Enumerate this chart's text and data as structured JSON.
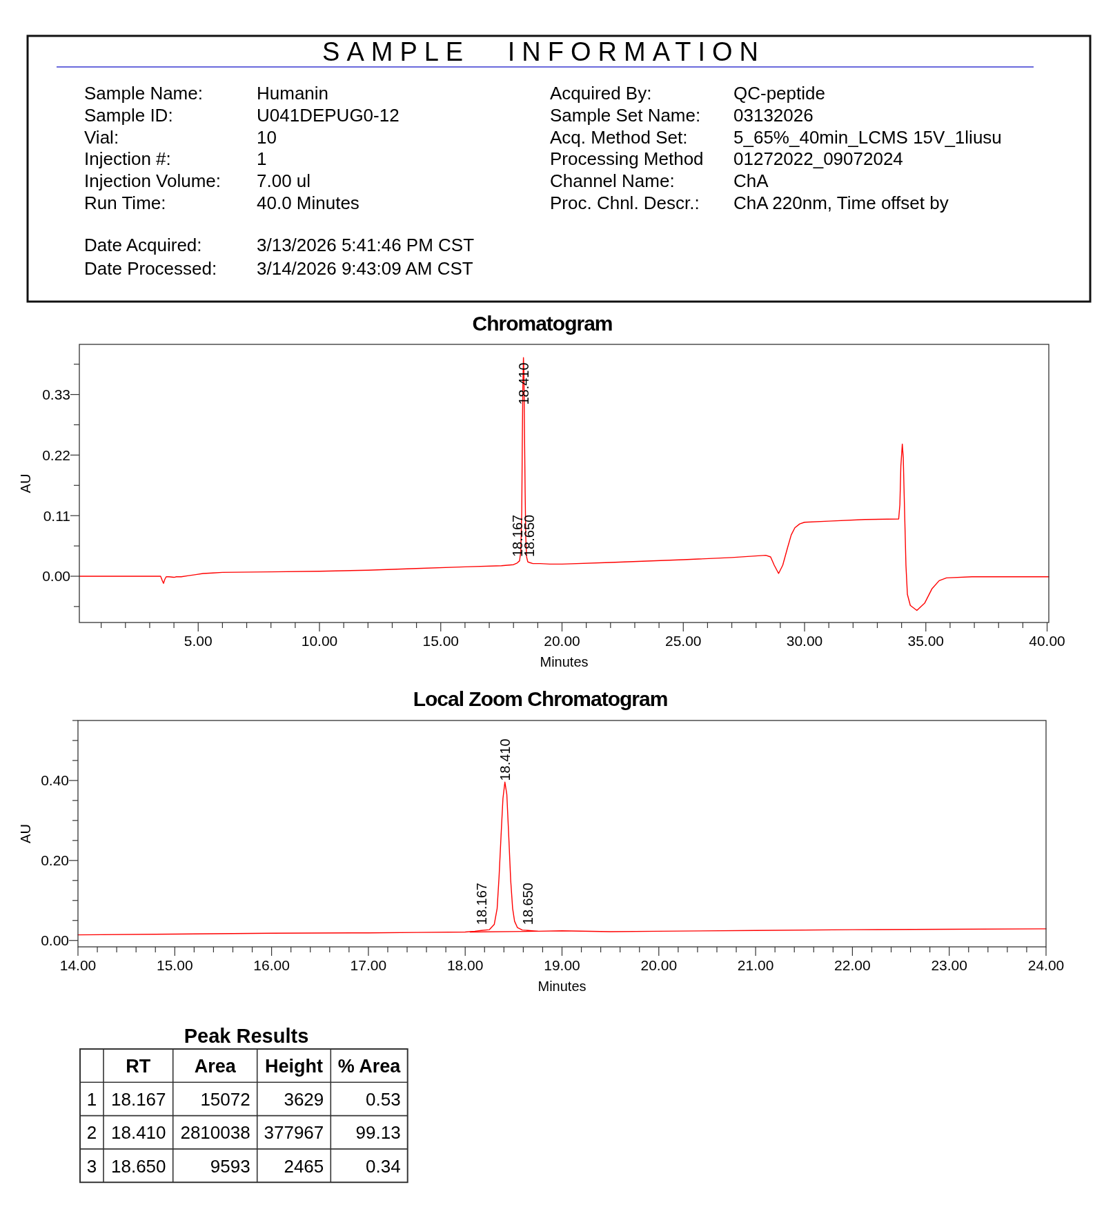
{
  "chart_data": [
    {
      "type": "other",
      "title": "SAMPLE INFORMATION",
      "annotations": [
        "Sample Name:",
        "Humanin",
        "Sample ID:",
        "U041DEPUG0-12",
        "Vial:",
        "10",
        "Injection #:",
        "1",
        "Injection Volume:",
        "7.00 ul",
        "Run Time:",
        "40.0 Minutes",
        "Acquired By:",
        "QC-peptide",
        "Sample Set Name:",
        "03132026",
        "Acq. Method Set:",
        "5_65%_40min_LCMS 15V_1liusu",
        "Processing Method",
        "01272022_09072024",
        "Channel Name:",
        "ChA",
        "Proc. Chnl. Descr.:",
        "ChA 220nm, Time offset by",
        "Date Acquired:",
        "3/13/2026 5:41:46 PM CST",
        "Date Processed:",
        "3/14/2026 9:43:09 AM CST"
      ]
    },
    {
      "type": "line",
      "title": "Chromatogram",
      "xlabel": "Minutes",
      "ylabel": "AU",
      "xlim": [
        0.1,
        40.07
      ],
      "ylim": [
        -0.084,
        0.421
      ],
      "xticks": [
        {
          "value": 1,
          "label": null
        },
        {
          "value": 2,
          "label": null
        },
        {
          "value": 3,
          "label": null
        },
        {
          "value": 4,
          "label": null
        },
        {
          "value": 5,
          "label": "5.00"
        },
        {
          "value": 6,
          "label": null
        },
        {
          "value": 7,
          "label": null
        },
        {
          "value": 8,
          "label": null
        },
        {
          "value": 9,
          "label": null
        },
        {
          "value": 10,
          "label": "10.00"
        },
        {
          "value": 11,
          "label": null
        },
        {
          "value": 12,
          "label": null
        },
        {
          "value": 13,
          "label": null
        },
        {
          "value": 14,
          "label": null
        },
        {
          "value": 15,
          "label": "15.00"
        },
        {
          "value": 16,
          "label": null
        },
        {
          "value": 17,
          "label": null
        },
        {
          "value": 18,
          "label": null
        },
        {
          "value": 19,
          "label": null
        },
        {
          "value": 20,
          "label": "20.00"
        },
        {
          "value": 21,
          "label": null
        },
        {
          "value": 22,
          "label": null
        },
        {
          "value": 23,
          "label": null
        },
        {
          "value": 24,
          "label": null
        },
        {
          "value": 25,
          "label": "25.00"
        },
        {
          "value": 26,
          "label": null
        },
        {
          "value": 27,
          "label": null
        },
        {
          "value": 28,
          "label": null
        },
        {
          "value": 29,
          "label": null
        },
        {
          "value": 30,
          "label": "30.00"
        },
        {
          "value": 31,
          "label": null
        },
        {
          "value": 32,
          "label": null
        },
        {
          "value": 33,
          "label": null
        },
        {
          "value": 34,
          "label": null
        },
        {
          "value": 35,
          "label": "35.00"
        },
        {
          "value": 36,
          "label": null
        },
        {
          "value": 37,
          "label": null
        },
        {
          "value": 38,
          "label": null
        },
        {
          "value": 39,
          "label": null
        },
        {
          "value": 40,
          "label": "40.00"
        }
      ],
      "yticks": [
        {
          "value": -0.055,
          "label": null
        },
        {
          "value": 0,
          "label": "0.00"
        },
        {
          "value": 0.055,
          "label": null
        },
        {
          "value": 0.11,
          "label": "0.11"
        },
        {
          "value": 0.165,
          "label": null
        },
        {
          "value": 0.22,
          "label": "0.22"
        },
        {
          "value": 0.275,
          "label": null
        },
        {
          "value": 0.33,
          "label": "0.33"
        },
        {
          "value": 0.385,
          "label": null
        }
      ],
      "series": [
        {
          "color": "#ff0000",
          "x": [
            0.1,
            1,
            2,
            3,
            3.45,
            3.52,
            3.57,
            3.62,
            3.68,
            3.8,
            4,
            4.1,
            4.3,
            4.6,
            4.9,
            5.2,
            5.6,
            6,
            8,
            10,
            12,
            14,
            16,
            17.5,
            18,
            18.15,
            18.25,
            18.3,
            18.34,
            18.36,
            18.385,
            18.41,
            18.43,
            18.45,
            18.48,
            18.505,
            18.54,
            18.59,
            18.65,
            18.8,
            19.1,
            19.5,
            20,
            22,
            25,
            27,
            28.4,
            28.6,
            28.75,
            28.93,
            29.1,
            29.3,
            29.45,
            29.6,
            29.8,
            30,
            31,
            32.5,
            33.88,
            33.93,
            33.97,
            34.03,
            34.07,
            34.1,
            34.14,
            34.18,
            34.24,
            34.36,
            34.63,
            34.95,
            35.25,
            35.55,
            35.85,
            36.9,
            38,
            40.07
          ],
          "values": [
            0,
            0,
            0,
            0,
            0,
            -0.008,
            -0.013,
            -0.006,
            -0.001,
            -0.001,
            -0.002,
            -0.001,
            -0.001,
            0.001,
            0.003,
            0.005,
            0.006,
            0.007,
            0.008,
            0.009,
            0.011,
            0.014,
            0.017,
            0.019,
            0.021,
            0.024,
            0.028,
            0.045,
            0.116,
            0.23,
            0.345,
            0.397,
            0.371,
            0.274,
            0.151,
            0.072,
            0.035,
            0.026,
            0.025,
            0.023,
            0.023,
            0.022,
            0.022,
            0.025,
            0.03,
            0.034,
            0.038,
            0.035,
            0.02,
            0.005,
            0.02,
            0.052,
            0.075,
            0.088,
            0.095,
            0.098,
            0.1,
            0.103,
            0.104,
            0.13,
            0.2,
            0.24,
            0.215,
            0.16,
            0.09,
            0.02,
            -0.033,
            -0.053,
            -0.062,
            -0.049,
            -0.023,
            -0.008,
            -0.003,
            -0.001,
            -0.001,
            -0.001
          ]
        }
      ],
      "annotations": [
        {
          "text": "18.167",
          "x": 18.167,
          "y": 0.025
        },
        {
          "text": "18.410",
          "x": 18.41,
          "y": 0.397
        },
        {
          "text": "18.650",
          "x": 18.65,
          "y": 0.025
        }
      ]
    },
    {
      "type": "line",
      "title": "Local Zoom Chromatogram",
      "xlabel": "Minutes",
      "ylabel": "AU",
      "xlim": [
        14,
        24
      ],
      "ylim": [
        -0.016,
        0.55
      ],
      "xticks": [
        {
          "value": 14,
          "label": "14.00"
        },
        {
          "value": 14.2,
          "label": null
        },
        {
          "value": 14.4,
          "label": null
        },
        {
          "value": 14.6,
          "label": null
        },
        {
          "value": 14.8,
          "label": null
        },
        {
          "value": 15,
          "label": "15.00"
        },
        {
          "value": 15.2,
          "label": null
        },
        {
          "value": 15.4,
          "label": null
        },
        {
          "value": 15.6,
          "label": null
        },
        {
          "value": 15.8,
          "label": null
        },
        {
          "value": 16,
          "label": "16.00"
        },
        {
          "value": 16.2,
          "label": null
        },
        {
          "value": 16.4,
          "label": null
        },
        {
          "value": 16.6,
          "label": null
        },
        {
          "value": 16.8,
          "label": null
        },
        {
          "value": 17,
          "label": "17.00"
        },
        {
          "value": 17.2,
          "label": null
        },
        {
          "value": 17.4,
          "label": null
        },
        {
          "value": 17.6,
          "label": null
        },
        {
          "value": 17.8,
          "label": null
        },
        {
          "value": 18,
          "label": "18.00"
        },
        {
          "value": 18.2,
          "label": null
        },
        {
          "value": 18.4,
          "label": null
        },
        {
          "value": 18.6,
          "label": null
        },
        {
          "value": 18.8,
          "label": null
        },
        {
          "value": 19,
          "label": "19.00"
        },
        {
          "value": 19.2,
          "label": null
        },
        {
          "value": 19.4,
          "label": null
        },
        {
          "value": 19.6,
          "label": null
        },
        {
          "value": 19.8,
          "label": null
        },
        {
          "value": 20,
          "label": "20.00"
        },
        {
          "value": 20.2,
          "label": null
        },
        {
          "value": 20.4,
          "label": null
        },
        {
          "value": 20.6,
          "label": null
        },
        {
          "value": 20.8,
          "label": null
        },
        {
          "value": 21,
          "label": "21.00"
        },
        {
          "value": 21.2,
          "label": null
        },
        {
          "value": 21.4,
          "label": null
        },
        {
          "value": 21.6,
          "label": null
        },
        {
          "value": 21.8,
          "label": null
        },
        {
          "value": 22,
          "label": "22.00"
        },
        {
          "value": 22.2,
          "label": null
        },
        {
          "value": 22.4,
          "label": null
        },
        {
          "value": 22.6,
          "label": null
        },
        {
          "value": 22.8,
          "label": null
        },
        {
          "value": 23,
          "label": "23.00"
        },
        {
          "value": 23.2,
          "label": null
        },
        {
          "value": 23.4,
          "label": null
        },
        {
          "value": 23.6,
          "label": null
        },
        {
          "value": 23.8,
          "label": null
        },
        {
          "value": 24,
          "label": "24.00"
        }
      ],
      "yticks": [
        {
          "value": 0,
          "label": "0.00"
        },
        {
          "value": 0.05,
          "label": null
        },
        {
          "value": 0.1,
          "label": null
        },
        {
          "value": 0.15,
          "label": null
        },
        {
          "value": 0.2,
          "label": "0.20"
        },
        {
          "value": 0.25,
          "label": null
        },
        {
          "value": 0.3,
          "label": null
        },
        {
          "value": 0.35,
          "label": null
        },
        {
          "value": 0.4,
          "label": "0.40"
        },
        {
          "value": 0.45,
          "label": null
        },
        {
          "value": 0.5,
          "label": null
        },
        {
          "value": 0.55,
          "label": null
        }
      ],
      "series": [
        {
          "color": "#ff0000",
          "x": [
            14,
            15,
            16,
            17,
            17.5,
            18,
            18.1,
            18.167,
            18.25,
            18.3,
            18.33,
            18.35,
            18.37,
            18.39,
            18.41,
            18.43,
            18.45,
            18.47,
            18.49,
            18.51,
            18.54,
            18.59,
            18.65,
            18.75,
            19,
            19.5,
            20,
            21,
            22,
            23,
            24
          ],
          "values": [
            0.014,
            0.016,
            0.018,
            0.019,
            0.02,
            0.021,
            0.023,
            0.025,
            0.027,
            0.04,
            0.08,
            0.16,
            0.26,
            0.355,
            0.396,
            0.365,
            0.26,
            0.15,
            0.08,
            0.048,
            0.032,
            0.026,
            0.025,
            0.023,
            0.024,
            0.022,
            0.023,
            0.025,
            0.027,
            0.028,
            0.029
          ]
        },
        {
          "color": "#ff0000",
          "x": [
            18.05,
            18.75
          ],
          "values": [
            0.021,
            0.023
          ]
        }
      ],
      "annotations": [
        {
          "text": "18.167",
          "x": 18.167,
          "y": 0.025
        },
        {
          "text": "18.410",
          "x": 18.41,
          "y": 0.396
        },
        {
          "text": "18.650",
          "x": 18.65,
          "y": 0.025
        }
      ]
    },
    {
      "type": "other",
      "title": "Peak Results",
      "categories": [
        "RT",
        "Area",
        "Height",
        "% Area"
      ],
      "y_categories": [
        "1",
        "2",
        "3"
      ],
      "cell_labels": [
        [
          "18.167",
          "15072",
          "3629",
          "0.53"
        ],
        [
          "18.410",
          "2810038",
          "377967",
          "99.13"
        ],
        [
          "18.650",
          "9593",
          "2465",
          "0.34"
        ]
      ]
    }
  ]
}
